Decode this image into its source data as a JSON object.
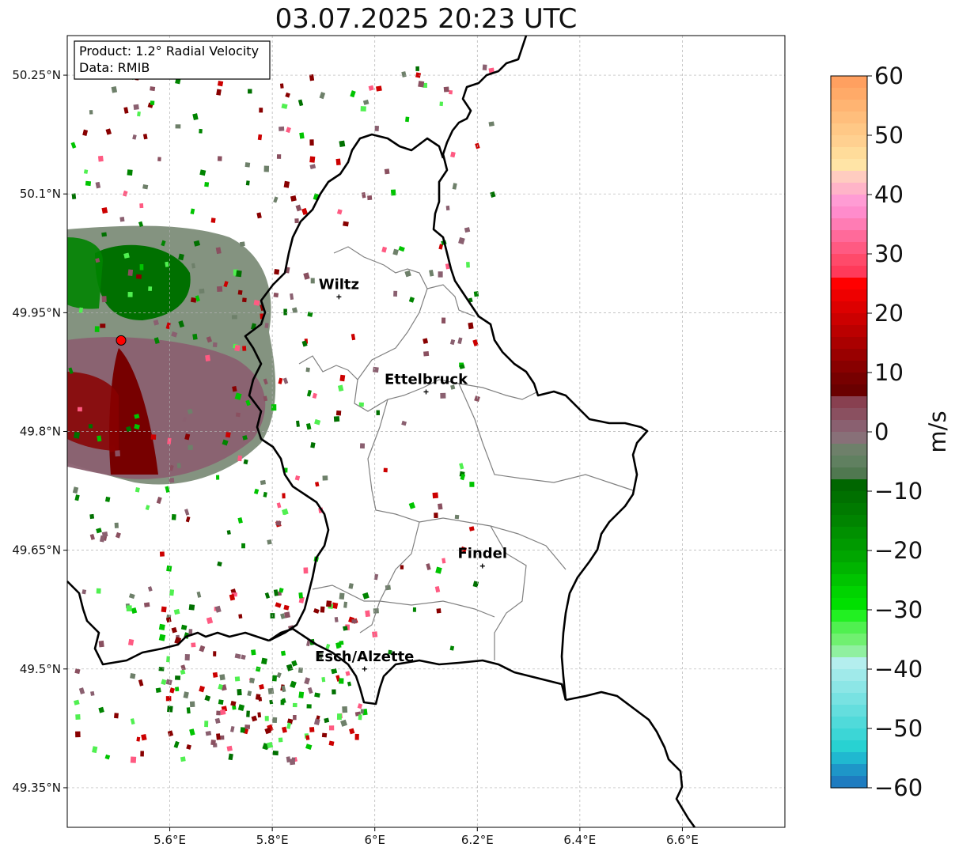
{
  "title": "03.07.2025 20:23 UTC",
  "info_box": {
    "product": "Product: 1.2° Radial Velocity",
    "data": "Data: RMIB"
  },
  "axes": {
    "lat_labels": [
      "50.25°N",
      "50.1°N",
      "49.95°N",
      "49.8°N",
      "49.65°N",
      "49.5°N",
      "49.35°N"
    ],
    "lon_labels": [
      "5.6°E",
      "5.8°E",
      "6°E",
      "6.2°E",
      "6.4°E",
      "6.6°E"
    ],
    "lat_values": [
      50.25,
      50.1,
      49.95,
      49.8,
      49.65,
      49.5,
      49.35
    ],
    "lon_values": [
      5.6,
      5.8,
      6.0,
      6.2,
      6.4,
      6.6
    ],
    "lon_range": [
      5.4,
      6.8
    ],
    "lat_range": [
      49.3,
      50.3
    ],
    "grid": true
  },
  "cities": [
    {
      "name": "Wiltz",
      "lon": 5.93,
      "lat": 49.97
    },
    {
      "name": "Ettelbruck",
      "lon": 6.1,
      "lat": 49.85
    },
    {
      "name": "Findel",
      "lon": 6.21,
      "lat": 49.63
    },
    {
      "name": "Esch/Alzette",
      "lon": 5.98,
      "lat": 49.5
    }
  ],
  "radar_site": {
    "lon": 5.505,
    "lat": 49.915,
    "color": "#ff0000"
  },
  "colorbar": {
    "label": "m/s",
    "min": -60,
    "max": 60,
    "ticks": [
      "60",
      "50",
      "40",
      "30",
      "20",
      "10",
      "0",
      "−10",
      "−20",
      "−30",
      "−40",
      "−50",
      "−60"
    ],
    "tick_values": [
      60,
      50,
      40,
      30,
      20,
      10,
      0,
      -10,
      -20,
      -30,
      -40,
      -50,
      -60
    ],
    "colors_top_to_bottom": [
      "#ffa060",
      "#ffaa68",
      "#ffb472",
      "#ffbe7c",
      "#ffc886",
      "#ffd090",
      "#ffdc9a",
      "#ffe4a6",
      "#ffccc0",
      "#ffb4c8",
      "#ff9cd4",
      "#ff8ccc",
      "#ff7cb4",
      "#ff6a9a",
      "#ff5a82",
      "#ff4a6a",
      "#ff3a5a",
      "#ff0000",
      "#ee0000",
      "#dd0000",
      "#cc0000",
      "#bb0000",
      "#aa0000",
      "#990000",
      "#880000",
      "#770000",
      "#6a0000",
      "#884050",
      "#8a5060",
      "#8a6070",
      "#887078",
      "#6e806a",
      "#608060",
      "#507850",
      "#006600",
      "#007000",
      "#007a00",
      "#008400",
      "#009000",
      "#009a00",
      "#00a600",
      "#00b400",
      "#00c400",
      "#00d400",
      "#00e000",
      "#22f022",
      "#50f050",
      "#70f070",
      "#90f0a0",
      "#b4eeee",
      "#a0eaea",
      "#8ce6e6",
      "#78e2e2",
      "#64dede",
      "#50dada",
      "#3cd6d6",
      "#28d2d2",
      "#20b8d0",
      "#1e96c8",
      "#1e7cc0"
    ]
  }
}
